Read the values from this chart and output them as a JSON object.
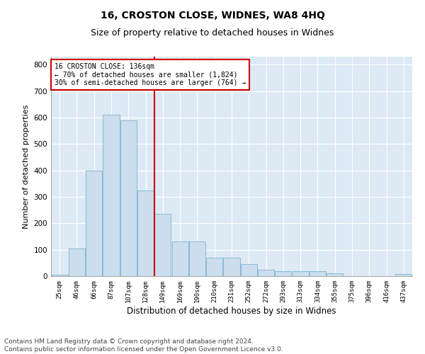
{
  "title1": "16, CROSTON CLOSE, WIDNES, WA8 4HQ",
  "title2": "Size of property relative to detached houses in Widnes",
  "xlabel": "Distribution of detached houses by size in Widnes",
  "ylabel": "Number of detached properties",
  "categories": [
    "25sqm",
    "46sqm",
    "66sqm",
    "87sqm",
    "107sqm",
    "128sqm",
    "149sqm",
    "169sqm",
    "190sqm",
    "210sqm",
    "231sqm",
    "252sqm",
    "272sqm",
    "293sqm",
    "313sqm",
    "334sqm",
    "355sqm",
    "375sqm",
    "396sqm",
    "416sqm",
    "437sqm"
  ],
  "values": [
    5,
    105,
    400,
    610,
    590,
    325,
    235,
    130,
    130,
    70,
    70,
    45,
    25,
    20,
    20,
    20,
    10,
    0,
    0,
    0,
    8
  ],
  "bar_color": "#ccdded",
  "bar_edge_color": "#7ab3d0",
  "vline_color": "#cc0000",
  "annotation_text": "16 CROSTON CLOSE: 136sqm\n← 70% of detached houses are smaller (1,824)\n30% of semi-detached houses are larger (764) →",
  "annotation_box_color": "white",
  "annotation_box_edge": "#cc0000",
  "ylim": [
    0,
    830
  ],
  "yticks": [
    0,
    100,
    200,
    300,
    400,
    500,
    600,
    700,
    800
  ],
  "bg_color": "#ddeaf5",
  "footer": "Contains HM Land Registry data © Crown copyright and database right 2024.\nContains public sector information licensed under the Open Government Licence v3.0.",
  "title1_fontsize": 10,
  "title2_fontsize": 9,
  "xlabel_fontsize": 8.5,
  "ylabel_fontsize": 8,
  "footer_fontsize": 6.5
}
